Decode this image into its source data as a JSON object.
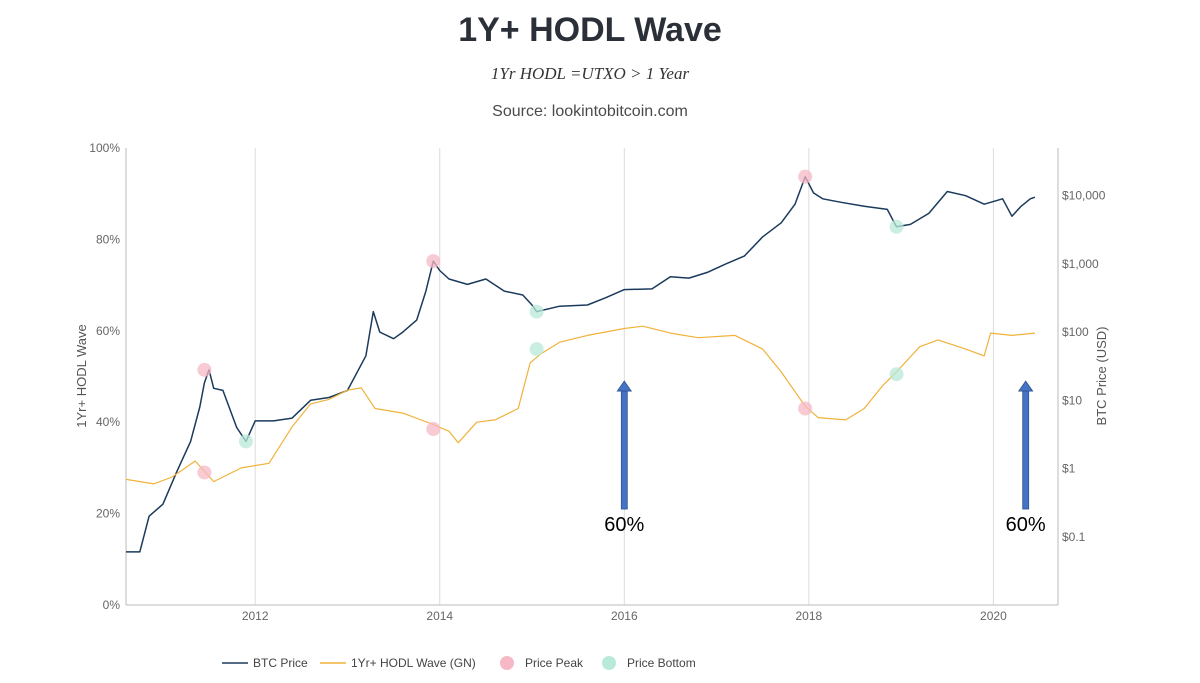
{
  "chart_data": {
    "type": "line",
    "title": "1Y+ HODL Wave",
    "subtitle": "1Yr HODL =UTXO > 1 Year",
    "source": "Source: lookintobitcoin.com",
    "xlim": [
      2010.6,
      2020.7
    ],
    "x_ticks": [
      2012,
      2014,
      2016,
      2018,
      2020
    ],
    "x_tick_labels": [
      "2012",
      "2014",
      "2016",
      "2018",
      "2020"
    ],
    "y_left": {
      "label": "1Yr+ HODL Wave",
      "range": [
        0,
        100
      ],
      "ticks": [
        0,
        20,
        40,
        60,
        80,
        100
      ],
      "tick_labels": [
        "0%",
        "20%",
        "40%",
        "60%",
        "80%",
        "100%"
      ]
    },
    "y_right": {
      "label": "BTC Price (USD)",
      "scale": "log",
      "range": [
        0.01,
        50000
      ],
      "ticks": [
        0.1,
        1,
        10,
        100,
        1000,
        10000
      ],
      "tick_labels": [
        "$0.1",
        "$1",
        "$10",
        "$100",
        "$1,000",
        "$10,000"
      ]
    },
    "grid": "vertical",
    "legend_position": "bottom",
    "series": [
      {
        "name": "BTC Price",
        "axis": "right",
        "color": "#1b3a5c",
        "points": [
          [
            2010.6,
            0.06
          ],
          [
            2010.75,
            0.06
          ],
          [
            2010.85,
            0.2
          ],
          [
            2011.0,
            0.3
          ],
          [
            2011.15,
            0.9
          ],
          [
            2011.3,
            2.5
          ],
          [
            2011.4,
            8
          ],
          [
            2011.45,
            18
          ],
          [
            2011.5,
            28
          ],
          [
            2011.55,
            15
          ],
          [
            2011.65,
            14
          ],
          [
            2011.8,
            4
          ],
          [
            2011.9,
            2.5
          ],
          [
            2012.0,
            5
          ],
          [
            2012.2,
            5
          ],
          [
            2012.4,
            5.5
          ],
          [
            2012.6,
            10
          ],
          [
            2012.8,
            11
          ],
          [
            2013.0,
            14
          ],
          [
            2013.2,
            45
          ],
          [
            2013.28,
            200
          ],
          [
            2013.35,
            100
          ],
          [
            2013.5,
            80
          ],
          [
            2013.6,
            100
          ],
          [
            2013.75,
            150
          ],
          [
            2013.85,
            400
          ],
          [
            2013.93,
            1100
          ],
          [
            2014.0,
            800
          ],
          [
            2014.1,
            600
          ],
          [
            2014.3,
            500
          ],
          [
            2014.5,
            600
          ],
          [
            2014.7,
            400
          ],
          [
            2014.9,
            350
          ],
          [
            2015.0,
            250
          ],
          [
            2015.05,
            200
          ],
          [
            2015.3,
            240
          ],
          [
            2015.6,
            250
          ],
          [
            2015.8,
            320
          ],
          [
            2016.0,
            420
          ],
          [
            2016.3,
            430
          ],
          [
            2016.5,
            650
          ],
          [
            2016.7,
            620
          ],
          [
            2016.9,
            750
          ],
          [
            2017.1,
            1000
          ],
          [
            2017.3,
            1300
          ],
          [
            2017.5,
            2500
          ],
          [
            2017.7,
            4000
          ],
          [
            2017.85,
            7500
          ],
          [
            2017.96,
            19000
          ],
          [
            2018.05,
            11000
          ],
          [
            2018.15,
            9000
          ],
          [
            2018.35,
            8000
          ],
          [
            2018.6,
            7000
          ],
          [
            2018.85,
            6300
          ],
          [
            2018.95,
            3500
          ],
          [
            2019.1,
            3800
          ],
          [
            2019.3,
            5500
          ],
          [
            2019.5,
            11500
          ],
          [
            2019.7,
            10000
          ],
          [
            2019.9,
            7500
          ],
          [
            2020.1,
            9000
          ],
          [
            2020.2,
            5000
          ],
          [
            2020.3,
            7000
          ],
          [
            2020.4,
            9000
          ],
          [
            2020.45,
            9500
          ]
        ]
      },
      {
        "name": "1Yr+ HODL Wave (GN)",
        "axis": "left",
        "color": "#f0b23a",
        "points": [
          [
            2010.6,
            27.5
          ],
          [
            2010.9,
            26.5
          ],
          [
            2011.1,
            28
          ],
          [
            2011.35,
            31.5
          ],
          [
            2011.55,
            27
          ],
          [
            2011.85,
            30
          ],
          [
            2012.15,
            31
          ],
          [
            2012.4,
            39
          ],
          [
            2012.6,
            44
          ],
          [
            2012.8,
            45
          ],
          [
            2013.0,
            47
          ],
          [
            2013.15,
            47.5
          ],
          [
            2013.3,
            43
          ],
          [
            2013.6,
            42
          ],
          [
            2013.93,
            39.5
          ],
          [
            2014.1,
            38
          ],
          [
            2014.2,
            35.5
          ],
          [
            2014.4,
            40
          ],
          [
            2014.6,
            40.5
          ],
          [
            2014.85,
            43
          ],
          [
            2014.98,
            53
          ],
          [
            2015.1,
            55
          ],
          [
            2015.3,
            57.5
          ],
          [
            2015.6,
            59
          ],
          [
            2016.0,
            60.5
          ],
          [
            2016.2,
            61
          ],
          [
            2016.5,
            59.5
          ],
          [
            2016.8,
            58.5
          ],
          [
            2017.2,
            59
          ],
          [
            2017.5,
            56
          ],
          [
            2017.7,
            51
          ],
          [
            2017.96,
            43.5
          ],
          [
            2018.1,
            41
          ],
          [
            2018.4,
            40.5
          ],
          [
            2018.6,
            43
          ],
          [
            2018.8,
            48
          ],
          [
            2018.95,
            51
          ],
          [
            2019.2,
            56.5
          ],
          [
            2019.4,
            58
          ],
          [
            2019.7,
            56
          ],
          [
            2019.9,
            54.5
          ],
          [
            2019.97,
            59.5
          ],
          [
            2020.2,
            59
          ],
          [
            2020.45,
            59.5
          ]
        ]
      }
    ],
    "price_peaks": {
      "name": "Price Peak",
      "color": "#f5b8c4",
      "btc_price_points": [
        [
          2011.45,
          28
        ],
        [
          2013.93,
          1100
        ],
        [
          2017.96,
          19000
        ]
      ],
      "hodl_points": [
        [
          2011.45,
          29
        ],
        [
          2013.93,
          38.5
        ],
        [
          2017.96,
          43
        ]
      ]
    },
    "price_bottoms": {
      "name": "Price Bottom",
      "color": "#b8ead8",
      "btc_price_points": [
        [
          2011.9,
          2.5
        ],
        [
          2015.05,
          200
        ],
        [
          2018.95,
          3500
        ]
      ],
      "hodl_points": [
        [
          2015.05,
          56
        ],
        [
          2018.95,
          50.5
        ]
      ]
    },
    "annotations": [
      {
        "text": "60%",
        "x": 2016.0,
        "arrow_from": 21,
        "arrow_to": 49,
        "color": "#4472c4"
      },
      {
        "text": "60%",
        "x": 2020.35,
        "arrow_from": 21,
        "arrow_to": 49,
        "color": "#4472c4"
      }
    ]
  }
}
